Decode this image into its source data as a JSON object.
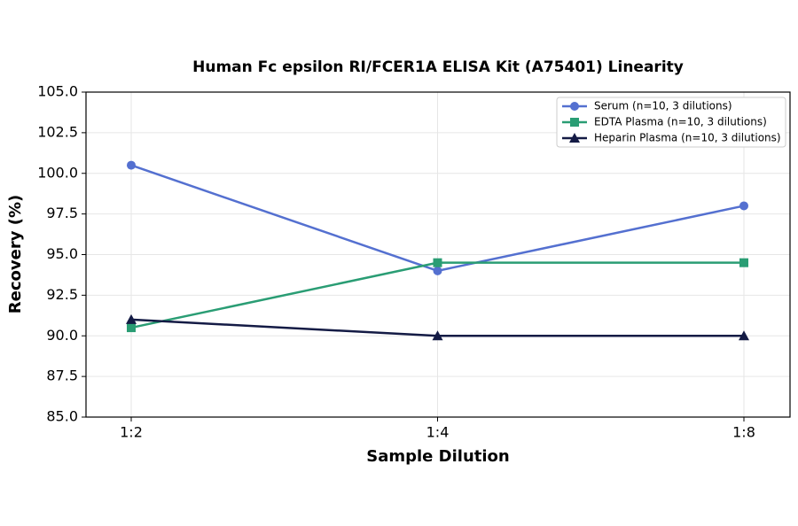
{
  "chart_data": {
    "type": "line",
    "title": "Human Fc epsilon RI/FCER1A ELISA Kit (A75401) Linearity",
    "x_label": "Sample Dilution",
    "y_label": "Recovery (%)",
    "categories": [
      "1:2",
      "1:4",
      "1:8"
    ],
    "series": [
      {
        "name": "Serum (n=10, 3 dilutions)",
        "color": "#5470d0",
        "marker": "circle",
        "values": [
          100.5,
          94,
          98
        ]
      },
      {
        "name": "EDTA Plasma (n=10, 3 dilutions)",
        "color": "#2a9d74",
        "marker": "square",
        "values": [
          90.5,
          94.5,
          94.5
        ]
      },
      {
        "name": "Heparin Plasma (n=10, 3 dilutions)",
        "color": "#141b45",
        "marker": "triangle",
        "values": [
          91,
          90,
          90
        ]
      }
    ],
    "ylim": [
      85,
      105
    ],
    "yticks": [
      {
        "value": 85,
        "label": "85.0"
      },
      87.5,
      {
        "value": 90,
        "label": "90.0"
      },
      92.5,
      {
        "value": 95,
        "label": "95.0"
      },
      97.5,
      {
        "value": 100,
        "label": "100.0"
      },
      102.5,
      {
        "value": 105,
        "label": "105.0"
      }
    ],
    "grid": true,
    "legend": "upper right"
  }
}
